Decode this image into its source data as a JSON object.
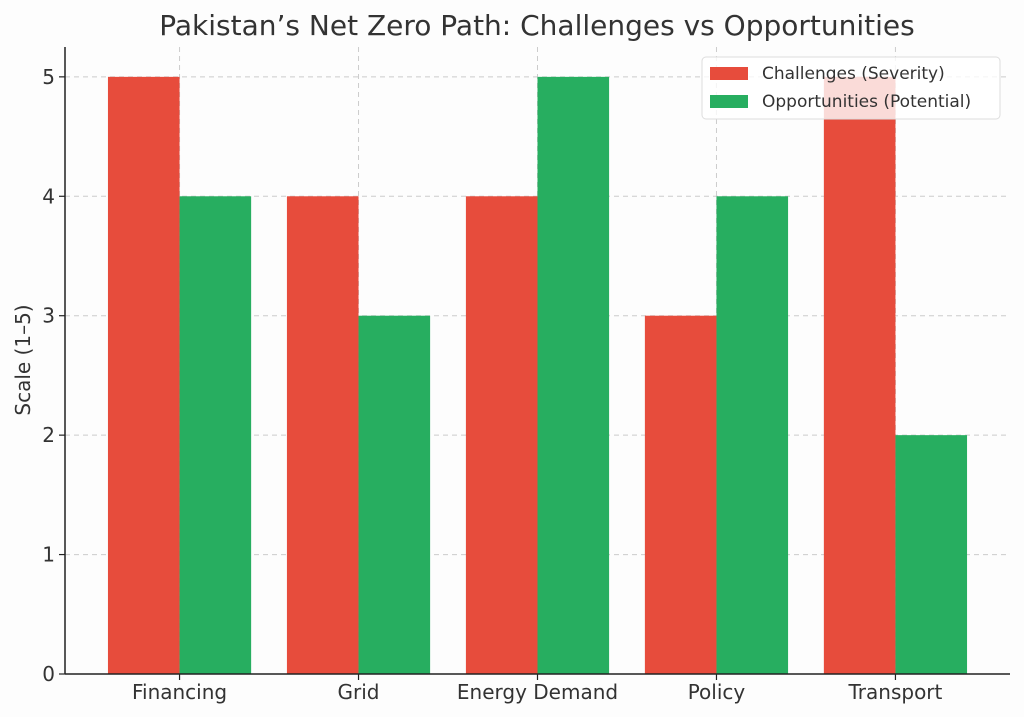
{
  "chart_data": {
    "type": "bar",
    "title": "Pakistan’s Net Zero Path: Challenges vs Opportunities",
    "xlabel": "",
    "ylabel": "Scale (1–5)",
    "categories": [
      "Financing",
      "Grid",
      "Energy Demand",
      "Policy",
      "Transport"
    ],
    "series": [
      {
        "name": "Challenges (Severity)",
        "values": [
          5,
          4,
          4,
          3,
          5
        ],
        "color": "#e74c3c"
      },
      {
        "name": "Opportunities (Potential)",
        "values": [
          4,
          3,
          5,
          4,
          2
        ],
        "color": "#27ae60"
      }
    ],
    "ylim": [
      0,
      5.25
    ],
    "yticks": [
      0,
      1,
      2,
      3,
      4,
      5
    ],
    "grid": true,
    "legend_position": "top-right"
  }
}
